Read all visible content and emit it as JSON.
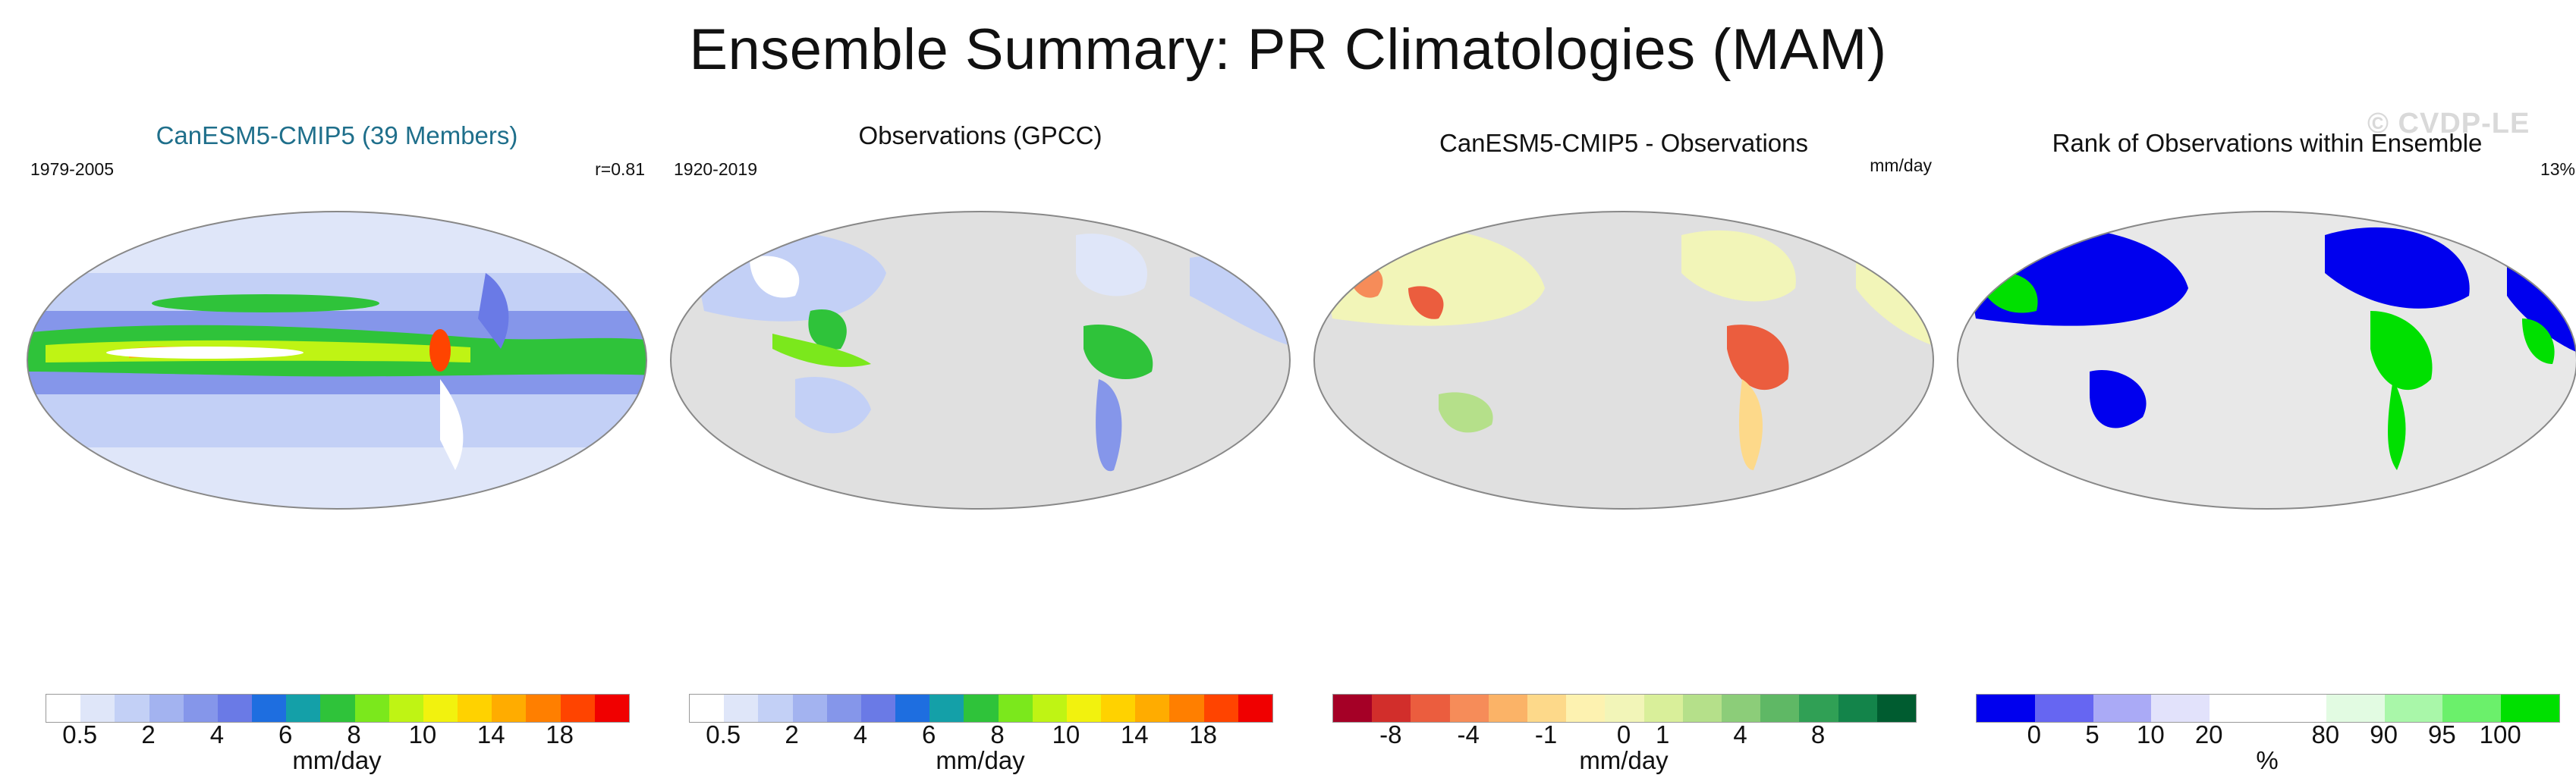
{
  "figure": {
    "title": "Ensemble Summary: PR Climatologies (MAM)",
    "watermark": "© CVDP-LE"
  },
  "panels": [
    {
      "id": "model",
      "title": "CanESM5-CMIP5 (39 Members)",
      "title_color": "#1f6f8b",
      "corner_left": "1979-2005",
      "corner_right": "r=0.81",
      "units": "mm/day",
      "colorbar": [
        "#ffffff",
        "#dfe6f9",
        "#c3d0f6",
        "#a3b3f0",
        "#8596ea",
        "#6a7ae6",
        "#1e6ee0",
        "#14a0a8",
        "#2fc33a",
        "#7be81c",
        "#bff414",
        "#f2f20e",
        "#ffd200",
        "#ffac00",
        "#ff7f00",
        "#ff4400",
        "#f00000"
      ],
      "ticks": [
        "0.5",
        "2",
        "4",
        "6",
        "8",
        "10",
        "14",
        "18"
      ]
    },
    {
      "id": "obs",
      "title": "Observations (GPCC)",
      "title_color": "#111111",
      "corner_left": "1920-2019",
      "corner_right": "",
      "units": "mm/day",
      "colorbar": [
        "#ffffff",
        "#dfe6f9",
        "#c3d0f6",
        "#a3b3f0",
        "#8596ea",
        "#6a7ae6",
        "#1e6ee0",
        "#14a0a8",
        "#2fc33a",
        "#7be81c",
        "#bff414",
        "#f2f20e",
        "#ffd200",
        "#ffac00",
        "#ff7f00",
        "#ff4400",
        "#f00000"
      ],
      "ticks": [
        "0.5",
        "2",
        "4",
        "6",
        "8",
        "10",
        "14",
        "18"
      ]
    },
    {
      "id": "diff",
      "title": "CanESM5-CMIP5 - Observations",
      "title_color": "#111111",
      "corner_left": "",
      "corner_right": "mm/day",
      "units": "mm/day",
      "colorbar": [
        "#a50026",
        "#d22e2b",
        "#eb5d3e",
        "#f68c59",
        "#fbb367",
        "#fdd98a",
        "#fdf2b0",
        "#f2f5b8",
        "#d9ef9a",
        "#b5e08a",
        "#8ccd79",
        "#5fb865",
        "#30a055",
        "#13844a",
        "#005c30"
      ],
      "ticks": [
        "-8",
        "-4",
        "-1",
        "0",
        "1",
        "4",
        "8"
      ]
    },
    {
      "id": "rank",
      "title": "Rank of Observations within Ensemble",
      "title_color": "#111111",
      "corner_left": "",
      "corner_right": "13%",
      "units": "%",
      "colorbar": [
        "#0000ee",
        "#6666f2",
        "#aaaaf6",
        "#e2e2fb",
        "#ffffff",
        "#ffffff",
        "#e2fbe2",
        "#a9f7a9",
        "#6bf06b",
        "#00e000"
      ],
      "ticks": [
        "0",
        "5",
        "10",
        "20",
        "80",
        "90",
        "95",
        "100"
      ]
    }
  ]
}
